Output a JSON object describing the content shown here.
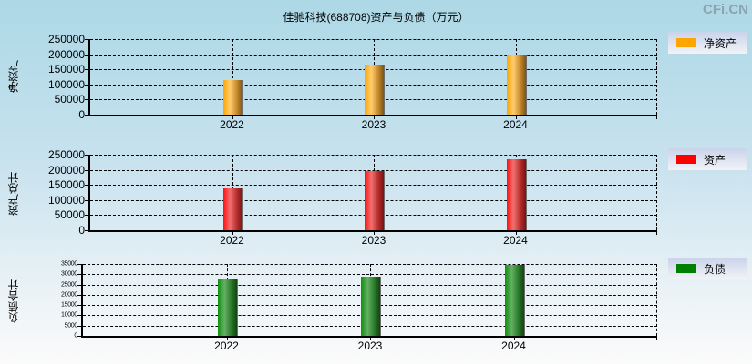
{
  "header": {
    "title": "佳驰科技(688708)资产与负债（万元）",
    "brand": "CFi.CN"
  },
  "colors": {
    "net_assets": "#ffa500",
    "total_assets": "#ff0000",
    "total_liabilities": "#008000",
    "background_top": "#add8e6",
    "background_bottom": "#fbfbfb"
  },
  "panels": [
    {
      "ylabel": "净资产",
      "legend": "净资产",
      "ticks": [
        "250000",
        "200000",
        "150000",
        "100000",
        "50000",
        "0"
      ],
      "categories": [
        "2022",
        "2023",
        "2024"
      ]
    },
    {
      "ylabel": "资产总计",
      "legend": "资产",
      "ticks": [
        "250000",
        "200000",
        "150000",
        "100000",
        "50000",
        "0"
      ],
      "categories": [
        "2022",
        "2023",
        "2024"
      ]
    },
    {
      "ylabel": "负债合计",
      "legend": "负债",
      "ticks": [
        "35000",
        "30000",
        "25000",
        "20000",
        "15000",
        "10000",
        "5000",
        "0"
      ],
      "categories": [
        "2022",
        "2023",
        "2024"
      ]
    }
  ],
  "chart_data": [
    {
      "type": "bar",
      "title": "佳驰科技(688708)资产与负债（万元）",
      "xlabel": "",
      "ylabel": "净资产",
      "categories": [
        "2022",
        "2023",
        "2024"
      ],
      "series": [
        {
          "name": "净资产",
          "values": [
            113000,
            167000,
            199000
          ],
          "color": "#ffa500"
        }
      ],
      "ylim": [
        0,
        250000
      ],
      "grid": true,
      "legend_position": "right"
    },
    {
      "type": "bar",
      "title": "佳驰科技(688708)资产与负债（万元）",
      "xlabel": "",
      "ylabel": "资产总计",
      "categories": [
        "2022",
        "2023",
        "2024"
      ],
      "series": [
        {
          "name": "资产",
          "values": [
            140000,
            196000,
            235000
          ],
          "color": "#ff0000"
        }
      ],
      "ylim": [
        0,
        250000
      ],
      "grid": true,
      "legend_position": "right"
    },
    {
      "type": "bar",
      "title": "佳驰科技(688708)资产与负债（万元）",
      "xlabel": "",
      "ylabel": "负债合计",
      "categories": [
        "2022",
        "2023",
        "2024"
      ],
      "series": [
        {
          "name": "负债",
          "values": [
            27500,
            28900,
            34500
          ],
          "color": "#008000"
        }
      ],
      "ylim": [
        0,
        35000
      ],
      "grid": true,
      "legend_position": "right"
    }
  ]
}
